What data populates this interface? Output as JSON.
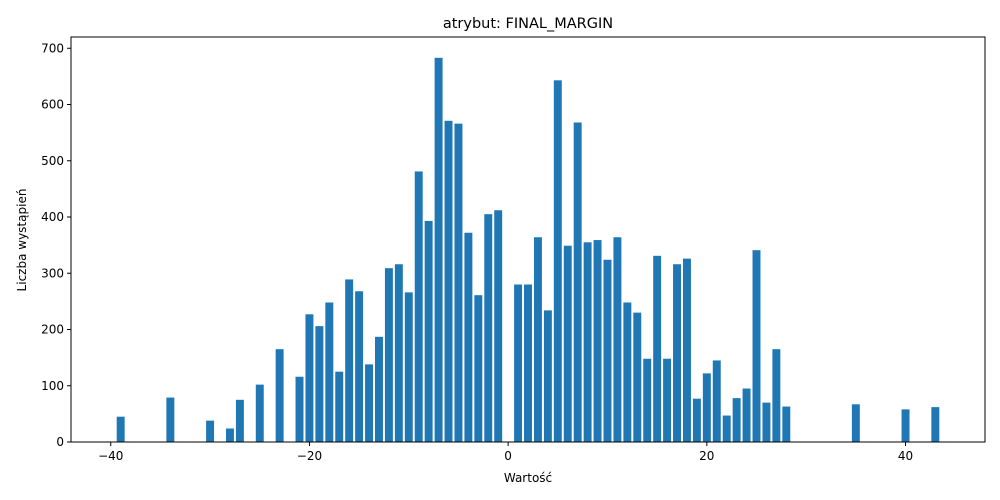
{
  "chart_data": {
    "type": "bar",
    "title": "atrybut: FINAL_MARGIN",
    "xlabel": "Wartość",
    "ylabel": "Liczba wystąpień",
    "xlim": [
      -44,
      48
    ],
    "ylim": [
      0,
      720
    ],
    "xticks": [
      -40,
      -20,
      0,
      20,
      40
    ],
    "yticks": [
      0,
      100,
      200,
      300,
      400,
      500,
      600,
      700
    ],
    "bar_color": "#1f77b4",
    "grid": false,
    "x": [
      -39,
      -34,
      -30,
      -28,
      -27,
      -25,
      -23,
      -21,
      -20,
      -19,
      -18,
      -17,
      -16,
      -15,
      -14,
      -13,
      -12,
      -11,
      -10,
      -9,
      -8,
      -7,
      -6,
      -5,
      -4,
      -3,
      -2,
      -1,
      1,
      2,
      3,
      4,
      5,
      6,
      7,
      8,
      9,
      10,
      11,
      12,
      13,
      14,
      15,
      16,
      17,
      18,
      19,
      20,
      21,
      22,
      23,
      24,
      25,
      26,
      27,
      28,
      35,
      40,
      43
    ],
    "values": [
      45,
      79,
      38,
      24,
      75,
      102,
      165,
      116,
      227,
      206,
      248,
      125,
      289,
      268,
      138,
      187,
      309,
      316,
      266,
      481,
      393,
      683,
      571,
      566,
      372,
      261,
      405,
      412,
      280,
      280,
      364,
      234,
      643,
      349,
      568,
      355,
      359,
      324,
      364,
      248,
      230,
      148,
      331,
      148,
      316,
      326,
      77,
      122,
      145,
      47,
      78,
      95,
      341,
      70,
      165,
      63,
      67,
      58,
      62
    ]
  }
}
